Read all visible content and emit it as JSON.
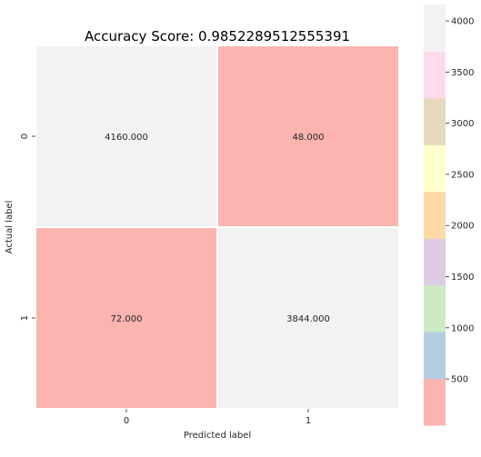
{
  "chart_data": {
    "type": "heatmap",
    "title": "Accuracy Score: 0.9852289512555391",
    "xlabel": "Predicted label",
    "ylabel": "Actual label",
    "x_categories": [
      "0",
      "1"
    ],
    "y_categories": [
      "0",
      "1"
    ],
    "values": [
      [
        4160,
        48
      ],
      [
        72,
        3844
      ]
    ],
    "cell_labels": [
      [
        "4160.000",
        "48.000"
      ],
      [
        "72.000",
        "3844.000"
      ]
    ],
    "colormap": "Pastel1",
    "colorbar": {
      "min": 48,
      "max": 4160,
      "ticks": [
        500,
        1000,
        1500,
        2000,
        2500,
        3000,
        3500,
        4000
      ],
      "colors": [
        "#fbb4ae",
        "#b3cde3",
        "#ccebc5",
        "#decbe4",
        "#fed9a6",
        "#ffffcc",
        "#e5d8bd",
        "#fddaec",
        "#f2f2f2"
      ]
    },
    "grid": false,
    "cell_separator_color": "#ffffff"
  }
}
